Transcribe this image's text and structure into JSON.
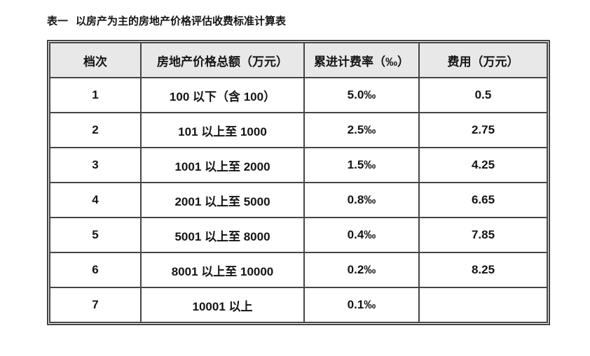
{
  "page": {
    "background": "#ffffff"
  },
  "title": {
    "label": "表一",
    "text": "以房产为主的房地产价格评估收费标准计算表"
  },
  "table": {
    "columns": [
      "档次",
      "房地产价格总额（万元）",
      "累进计费率（‰）",
      "费用（万元）"
    ],
    "rows": [
      [
        "1",
        "100 以下（含 100）",
        "5.0‰",
        "0.5"
      ],
      [
        "2",
        "101 以上至 1000",
        "2.5‰",
        "2.75"
      ],
      [
        "3",
        "1001 以上至 2000",
        "1.5‰",
        "4.25"
      ],
      [
        "4",
        "2001 以上至 5000",
        "0.8‰",
        "6.65"
      ],
      [
        "5",
        "5001 以上至 8000",
        "0.4‰",
        "7.85"
      ],
      [
        "6",
        "8001 以上至 10000",
        "0.2‰",
        "8.25"
      ],
      [
        "7",
        "10001 以上",
        "0.1‰",
        ""
      ]
    ],
    "colors": {
      "header_bg": "#e8e8e8",
      "border": "#454545",
      "text": "#141414"
    }
  }
}
